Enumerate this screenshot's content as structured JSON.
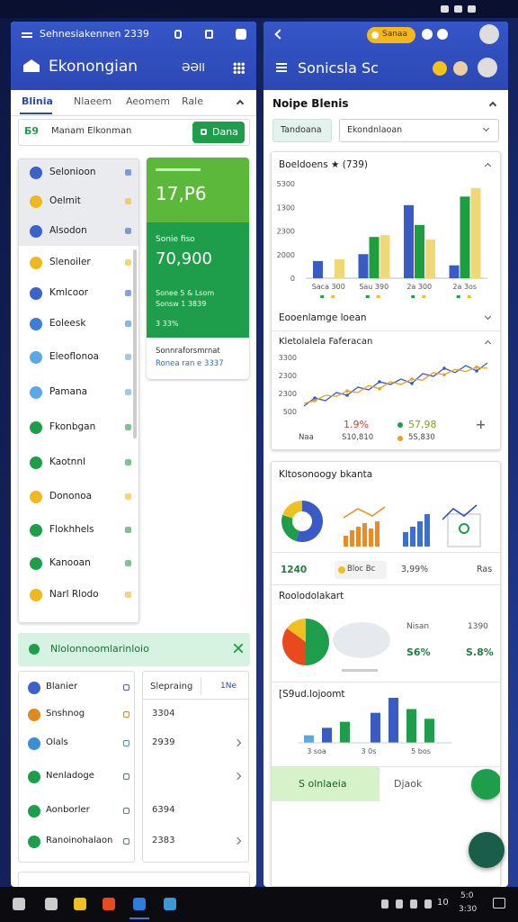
{
  "status_bar": {
    "title": "Sehnesiakennen 2339"
  },
  "left": {
    "title": "Ekonongian",
    "code": "ƏƏII",
    "tabs": [
      "Blinia",
      "Nlaeem",
      "Aeomem",
      "Rale"
    ],
    "search": {
      "tag": "Ƃ9",
      "text": "Manam Elkonman",
      "button": "Dana"
    },
    "list": [
      {
        "label": "Selonioon",
        "color": "#3b63c9"
      },
      {
        "label": "Oelmit",
        "color": "#f0b820"
      },
      {
        "label": "Alsodon",
        "color": "#3b63c9"
      },
      {
        "label": "Slenoiler",
        "color": "#f0b820"
      },
      {
        "label": "Kmlcoor",
        "color": "#3b63c9"
      },
      {
        "label": "Eoleesk",
        "color": "#3b7fd9"
      },
      {
        "label": "Eleoflonoa",
        "color": "#5aa9e6"
      },
      {
        "label": "Pamana",
        "color": "#5aa9e6"
      },
      {
        "label": "Fkonbgan",
        "color": "#1e9e4a"
      },
      {
        "label": "Kaotnnl",
        "color": "#1e9e4a"
      },
      {
        "label": "Dononoa",
        "color": "#f0b820"
      },
      {
        "label": "Flokhhels",
        "color": "#1e9e4a"
      },
      {
        "label": "Kanooan",
        "color": "#1e9e4a"
      },
      {
        "label": "Narl Rlodo",
        "color": "#f0b820"
      }
    ],
    "card": {
      "value1": "17,P6",
      "label2": "Sonie fiso",
      "value2": "70,900",
      "line1": "Sonee 5 & Lsom",
      "line2": "Sonsw 1 3839",
      "line3": "3 33%",
      "footer_title": "Sonnraforsmrnat",
      "footer_link": "Ronea ran e 3337"
    },
    "banner": "Nlolonnoomlarinloio",
    "bottom_list": [
      {
        "label": "Blanier",
        "color": "#3b63c9"
      },
      {
        "label": "Snshnog",
        "color": "#e08a1e"
      },
      {
        "label": "Olals",
        "color": "#3b8fd9"
      },
      {
        "label": "Nenladoge",
        "color": "#1e9e4a"
      },
      {
        "label": "Aonborler",
        "color": "#1e9e4a"
      },
      {
        "label": "Ranoinohalaon",
        "color": "#1e9e4a"
      }
    ],
    "side": {
      "header": "Slepraing",
      "action": "1Ne",
      "values": [
        "3304",
        "2939",
        "6394",
        "2383"
      ]
    }
  },
  "right": {
    "pill": "Sanaa",
    "title": "Sonicsla Sc",
    "section": "Noipe Blenis",
    "select1": "Tandoana",
    "select2": "Ekondnlaoan",
    "bar_chart": {
      "title": "Boeldoens ★ (739)",
      "axis_labels": [
        "5300",
        "1300",
        "2300",
        "2000",
        "0"
      ],
      "categories": [
        "Saca 300",
        "Sau 390",
        "2a 300",
        "2a 3os"
      ],
      "ylim": [
        0,
        110
      ],
      "series": [
        {
          "color": "#3b5bc4",
          "values": [
            20,
            28,
            85,
            15
          ]
        },
        {
          "color": "#1e9e3e",
          "values": [
            0,
            48,
            62,
            95
          ]
        },
        {
          "color": "#f0d878",
          "values": [
            22,
            50,
            45,
            105
          ]
        }
      ]
    },
    "subsection": "Eooenlamge loean",
    "line_chart": {
      "title": "Kletolalela Faferacan",
      "axis_labels": [
        "3300",
        "2300",
        "2300",
        "500"
      ],
      "ylim": [
        0,
        100
      ],
      "series": [
        {
          "color": "#3b5bc4",
          "values": [
            10,
            25,
            20,
            35,
            30,
            45,
            40,
            55,
            50,
            60,
            52,
            70,
            65,
            80,
            72,
            85,
            75,
            90
          ]
        },
        {
          "color": "#e8a020",
          "values": [
            15,
            20,
            30,
            28,
            38,
            35,
            48,
            42,
            55,
            50,
            60,
            58,
            72,
            68,
            78,
            74,
            82,
            80
          ]
        }
      ],
      "stat1": "1.9%",
      "stat2": "57,98",
      "foot1": "Naa",
      "foot2": "S10,810",
      "foot3": "5S,830"
    },
    "card2_title": "Kltosonoogy bkanta",
    "donut": {
      "values": [
        55,
        25,
        20
      ],
      "colors": [
        "#3b5bc4",
        "#1e9e4a",
        "#f0c020"
      ]
    },
    "row": {
      "value": "1240",
      "select": "Bloc Bc",
      "percent": "3,99%",
      "end": "Ras"
    },
    "section2": "Roolodolakart",
    "pie": {
      "values": [
        50,
        35,
        15
      ],
      "colors": [
        "#1e9e4a",
        "#e84a1e",
        "#f0c020"
      ]
    },
    "pie_stats": {
      "label1": "Nisan",
      "label2": "1390",
      "value1": "S6%",
      "value2": "S.8%"
    },
    "section3": "[S9ud.lojoomt",
    "mini_bars": {
      "ylim": [
        0,
        60
      ],
      "values": [
        10,
        20,
        28,
        40,
        60,
        45,
        32
      ],
      "colors": [
        "#5aa9e6",
        "#3b5bc4",
        "#1e9e4a",
        "#3b5bc4",
        "#3b5bc4",
        "#1e9e4a",
        "#1e9e4a"
      ],
      "labels": [
        "3 soa",
        "3 0s",
        "5 bos"
      ]
    },
    "bottom": {
      "active": "S olnlaeia",
      "other": "Djaok"
    }
  },
  "taskbar": {
    "status": "10",
    "date": "5:0",
    "time": "3:30"
  }
}
